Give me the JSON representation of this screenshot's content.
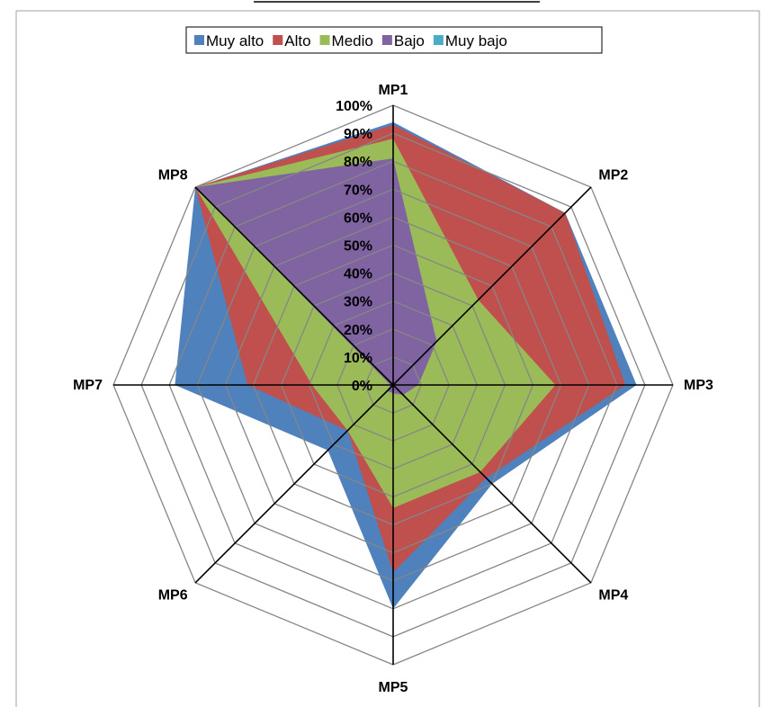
{
  "chart_data": {
    "type": "radar",
    "title": "",
    "axes": [
      "MP1",
      "MP2",
      "MP3",
      "MP4",
      "MP5",
      "MP6",
      "MP7",
      "MP8"
    ],
    "rlim": [
      0,
      100
    ],
    "tick_labels": [
      "0%",
      "10%",
      "20%",
      "30%",
      "40%",
      "50%",
      "60%",
      "70%",
      "80%",
      "90%",
      "100%"
    ],
    "legend_position": "top",
    "stacked": true,
    "series": [
      {
        "name": "Muy alto",
        "color": "#4F81BD",
        "values": [
          94,
          87,
          87,
          50,
          80,
          33,
          78,
          100
        ]
      },
      {
        "name": "Alto",
        "color": "#C0504D",
        "values": [
          93,
          87,
          83,
          47,
          67,
          23,
          52,
          100
        ]
      },
      {
        "name": "Medio",
        "color": "#9BBB59",
        "values": [
          88,
          43,
          58,
          44,
          44,
          23,
          29,
          100
        ]
      },
      {
        "name": "Bajo",
        "color": "#8064A2",
        "values": [
          81,
          22,
          9,
          5,
          3,
          3,
          1,
          100
        ]
      },
      {
        "name": "Muy bajo",
        "color": "#4BACC6",
        "values": [
          26,
          0,
          0,
          0,
          0,
          0,
          0,
          0
        ]
      }
    ]
  }
}
